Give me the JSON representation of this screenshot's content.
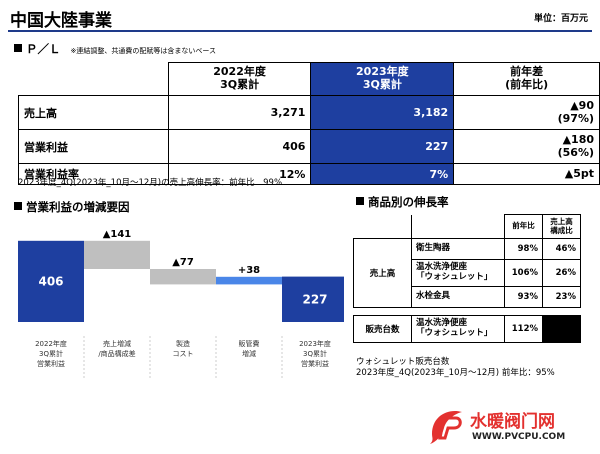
{
  "header": {
    "title": "中国大陸事業",
    "unit": "単位：百万元"
  },
  "pl": {
    "heading": "Ｐ／Ｌ",
    "note": "※連結調整、共通費の配賦等は含まないベース",
    "columns": {
      "y2022": [
        "2022年度",
        "3Q累計"
      ],
      "y2023": [
        "2023年度",
        "3Q累計"
      ],
      "diff": [
        "前年差",
        "(前年比)"
      ]
    },
    "rows": [
      {
        "label": "売上高",
        "y2022": "3,271",
        "y2023": "3,182",
        "diff": [
          "▲90",
          "(97%)"
        ]
      },
      {
        "label": "営業利益",
        "y2022": "406",
        "y2023": "227",
        "diff": [
          "▲180",
          "(56%)"
        ]
      },
      {
        "label": "営業利益率",
        "y2022": "12%",
        "y2023": "7%",
        "diff": [
          "▲5pt"
        ]
      }
    ],
    "footnote": "2023年度_4Q(2023年_10月～12月)の売上高伸長率：前年比　99%"
  },
  "waterfall": {
    "heading": "営業利益の増減要因",
    "colors": {
      "blue": "#1e3fa0",
      "gray": "#bfbfbf",
      "light_blue": "#4a86e8"
    },
    "chart_data": {
      "type": "bar",
      "subtype": "waterfall",
      "categories": [
        [
          "2022年度",
          "3Q累計",
          "営業利益"
        ],
        [
          "売上増減",
          "/商品構成差"
        ],
        [
          "製造",
          "コスト"
        ],
        [
          "販管費",
          "増減"
        ],
        [
          "2023年度",
          "3Q累計",
          "営業利益"
        ]
      ],
      "values": [
        406,
        -141,
        -77,
        38,
        227
      ],
      "labels": [
        "406",
        "▲141",
        "▲77",
        "+38",
        "227"
      ],
      "kinds": [
        "total",
        "delta",
        "delta",
        "delta",
        "total"
      ]
    }
  },
  "growth": {
    "heading": "商品別の伸長率",
    "col_headers": {
      "yoy": "前年比",
      "mix": [
        "売上高",
        "構成比"
      ]
    },
    "sales_label": "売上高",
    "sales_rows": [
      {
        "product": [
          "衛生陶器"
        ],
        "yoy": "98%",
        "mix": "46%"
      },
      {
        "product": [
          "温水洗浄便座",
          "「ウォシュレット」"
        ],
        "yoy": "106%",
        "mix": "26%"
      },
      {
        "product": [
          "水栓金具"
        ],
        "yoy": "93%",
        "mix": "23%"
      }
    ],
    "units_label": "販売台数",
    "units_row": {
      "product": [
        "温水洗浄便座",
        "「ウォシュレット」"
      ],
      "yoy": "112%"
    },
    "footnote": [
      "ウォシュレット販売台数",
      "2023年度_4Q(2023年_10月～12月) 前年比：95%"
    ]
  },
  "watermark": {
    "logo": "pv-logo",
    "text": "水暖阀门网",
    "url": "WWW.PVCPU.COM"
  }
}
